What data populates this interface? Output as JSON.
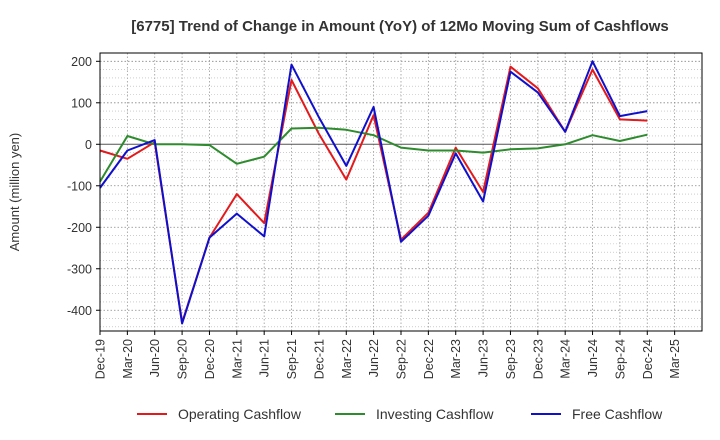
{
  "chart_data": {
    "type": "line",
    "title": "[6775]  Trend of Change in Amount (YoY) of 12Mo Moving Sum of Cashflows",
    "xlabel": "",
    "ylabel": "Amount (million yen)",
    "ylim": [
      -450,
      220
    ],
    "yticks": [
      200,
      100,
      0,
      -100,
      -200,
      -300,
      -400
    ],
    "ytick_labels": [
      "200",
      "100",
      "0",
      "-100",
      "-200",
      "-300",
      "-400"
    ],
    "grid": true,
    "legend_position": "bottom",
    "categories": [
      "Dec-19",
      "Mar-20",
      "Jun-20",
      "Sep-20",
      "Dec-20",
      "Mar-21",
      "Jun-21",
      "Sep-21",
      "Dec-21",
      "Mar-22",
      "Jun-22",
      "Sep-22",
      "Dec-22",
      "Mar-23",
      "Jun-23",
      "Sep-23",
      "Dec-23",
      "Mar-24",
      "Jun-24",
      "Sep-24",
      "Dec-24",
      "Mar-25"
    ],
    "series": [
      {
        "name": "Operating Cashflow",
        "color": "#e31a1c",
        "values": [
          -15,
          -35,
          5,
          -430,
          -225,
          -120,
          -190,
          155,
          25,
          -85,
          70,
          -230,
          -165,
          -8,
          -115,
          187,
          135,
          30,
          180,
          60,
          57,
          null
        ]
      },
      {
        "name": "Investing Cashflow",
        "color": "#2e8b2e",
        "values": [
          -90,
          20,
          0,
          0,
          -2,
          -47,
          -30,
          38,
          40,
          35,
          22,
          -8,
          -15,
          -15,
          -20,
          -12,
          -10,
          0,
          22,
          8,
          23,
          null
        ]
      },
      {
        "name": "Free Cashflow",
        "color": "#1010cc",
        "values": [
          -105,
          -15,
          10,
          -432,
          -225,
          -167,
          -222,
          192,
          65,
          -52,
          90,
          -235,
          -172,
          -22,
          -138,
          175,
          125,
          30,
          200,
          68,
          80,
          null
        ]
      }
    ]
  }
}
